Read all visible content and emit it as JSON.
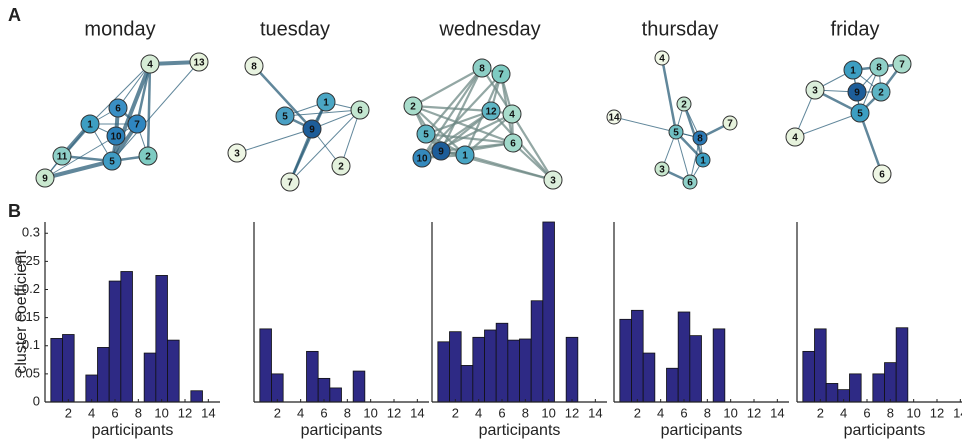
{
  "panel_labels": [
    "A",
    "B"
  ],
  "networks": [
    {
      "title": "monday",
      "nodes": [
        "4",
        "13",
        "6",
        "1",
        "10",
        "7",
        "11",
        "5",
        "2",
        "9"
      ],
      "colors": [
        "#d6ecd6",
        "#e6f2dc",
        "#3a8fc4",
        "#3d9ec2",
        "#2a7fb8",
        "#2f86c0",
        "#8fd0c8",
        "#3f9cc4",
        "#7ecbc2",
        "#c9e8cf"
      ]
    },
    {
      "title": "tuesday",
      "nodes": [
        "8",
        "1",
        "6",
        "5",
        "9",
        "3",
        "2",
        "7"
      ],
      "colors": [
        "#e8f3e0",
        "#4aa6c4",
        "#c3e6d0",
        "#4aa0c4",
        "#1d5d99",
        "#eef6e4",
        "#e3f1dc",
        "#e8f3e0"
      ]
    },
    {
      "title": "wednesday",
      "nodes": [
        "8",
        "7",
        "2",
        "12",
        "4",
        "5",
        "6",
        "10",
        "9",
        "1",
        "3"
      ],
      "colors": [
        "#8dcfc6",
        "#7ecbc2",
        "#a8dccb",
        "#5fb5c4",
        "#a8dccb",
        "#5db4c4",
        "#a1d9ca",
        "#3489bd",
        "#1d5d99",
        "#48a5c4",
        "#dbeedb"
      ]
    },
    {
      "title": "thursday",
      "nodes": [
        "4",
        "2",
        "7",
        "14",
        "5",
        "8",
        "1",
        "3",
        "6"
      ],
      "colors": [
        "#f0f7e6",
        "#c3e6d0",
        "#e6f2dc",
        "#f2f8e8",
        "#6fc0c4",
        "#2a78b4",
        "#3d9ec2",
        "#c9e8cf",
        "#8fd0c8"
      ]
    },
    {
      "title": "friday",
      "nodes": [
        "1",
        "8",
        "7",
        "3",
        "9",
        "2",
        "5",
        "4",
        "6"
      ],
      "colors": [
        "#3d9ec2",
        "#8fd0c8",
        "#a8dccb",
        "#dbeedb",
        "#1d5d99",
        "#5db4c4",
        "#3d9ec2",
        "#e6f2dc",
        "#eef6e4"
      ]
    }
  ],
  "chart_data": [
    {
      "type": "bar",
      "x": [
        1,
        2,
        3,
        4,
        5,
        6,
        7,
        8,
        9,
        10,
        11,
        12,
        13,
        14
      ],
      "values": [
        0.113,
        0.12,
        0,
        0.048,
        0.097,
        0.215,
        0.232,
        0,
        0.087,
        0.225,
        0.11,
        0,
        0.02,
        0
      ],
      "color": "#2e2a85",
      "xlim": [
        0,
        15
      ],
      "ylim": [
        0,
        0.32
      ],
      "xticks": [
        2,
        4,
        6,
        8,
        10,
        12,
        14
      ],
      "yticks": [
        0,
        0.05,
        0.1,
        0.15,
        0.2,
        0.25,
        0.3
      ],
      "xlabel": "participants",
      "ylabel": "cluster coefficient"
    },
    {
      "type": "bar",
      "x": [
        1,
        2,
        3,
        4,
        5,
        6,
        7,
        8,
        9,
        10,
        11,
        12,
        13,
        14
      ],
      "values": [
        0.13,
        0.05,
        0,
        0,
        0.09,
        0.042,
        0.025,
        0,
        0.055,
        0,
        0,
        0,
        0,
        0
      ],
      "color": "#2e2a85",
      "xlim": [
        0,
        15
      ],
      "ylim": [
        0,
        0.32
      ],
      "xticks": [
        2,
        4,
        6,
        8,
        10,
        12,
        14
      ],
      "xlabel": "participants"
    },
    {
      "type": "bar",
      "x": [
        1,
        2,
        3,
        4,
        5,
        6,
        7,
        8,
        9,
        10,
        11,
        12,
        13,
        14
      ],
      "values": [
        0.107,
        0.125,
        0.065,
        0.115,
        0.128,
        0.14,
        0.11,
        0.112,
        0.18,
        0.32,
        0,
        0.115,
        0,
        0
      ],
      "color": "#2e2a85",
      "xlim": [
        0,
        15
      ],
      "ylim": [
        0,
        0.32
      ],
      "xticks": [
        2,
        4,
        6,
        8,
        10,
        12,
        14
      ],
      "xlabel": "participants"
    },
    {
      "type": "bar",
      "x": [
        1,
        2,
        3,
        4,
        5,
        6,
        7,
        8,
        9,
        10,
        11,
        12,
        13,
        14
      ],
      "values": [
        0.147,
        0.163,
        0.087,
        0,
        0.06,
        0.16,
        0.118,
        0,
        0.13,
        0,
        0,
        0,
        0,
        0
      ],
      "color": "#2e2a85",
      "xlim": [
        0,
        15
      ],
      "ylim": [
        0,
        0.32
      ],
      "xticks": [
        2,
        4,
        6,
        8,
        10,
        12,
        14
      ],
      "xlabel": "participants"
    },
    {
      "type": "bar",
      "x": [
        1,
        2,
        3,
        4,
        5,
        6,
        7,
        8,
        9,
        10,
        11,
        12,
        13,
        14
      ],
      "values": [
        0.09,
        0.13,
        0.033,
        0.022,
        0.05,
        0,
        0.05,
        0.07,
        0.132,
        0,
        0,
        0,
        0,
        0
      ],
      "color": "#2e2a85",
      "xlim": [
        0,
        15
      ],
      "ylim": [
        0,
        0.32
      ],
      "xticks": [
        2,
        4,
        6,
        8,
        10,
        12,
        14
      ],
      "xlabel": "participants"
    }
  ]
}
